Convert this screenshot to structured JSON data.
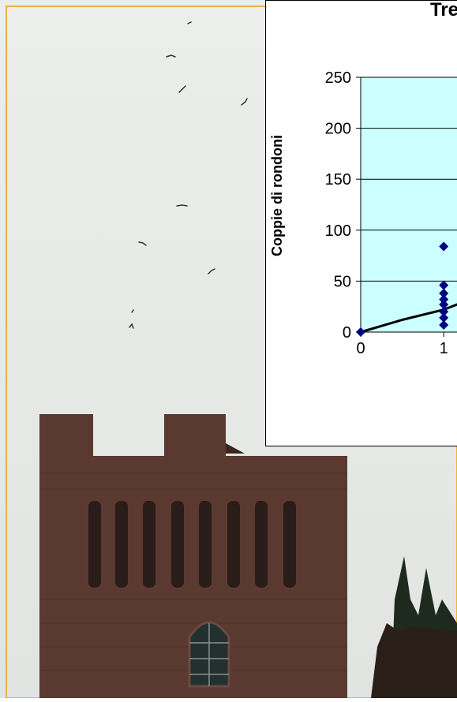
{
  "photo": {
    "description_icon": "swift-birds-over-brick-tower-photo",
    "sky_color": "#e9ece9",
    "brick_color": "#5a3a30",
    "frame_color": "#f0b040"
  },
  "chart_data": {
    "type": "scatter",
    "title": "Tre",
    "xlabel": "",
    "ylabel": "Coppie di rondoni",
    "ylim": [
      0,
      250
    ],
    "y_ticks": [
      0,
      50,
      100,
      150,
      200,
      250
    ],
    "x_ticks": [
      0,
      1
    ],
    "xlim": [
      0,
      1.35
    ],
    "grid": true,
    "plot_background": "#ccffff",
    "series": [
      {
        "type": "scatter",
        "color": "#000080",
        "points": [
          {
            "x": 0,
            "y": 0
          },
          {
            "x": 1,
            "y": 84
          },
          {
            "x": 1,
            "y": 46
          },
          {
            "x": 1,
            "y": 38
          },
          {
            "x": 1,
            "y": 32
          },
          {
            "x": 1,
            "y": 27
          },
          {
            "x": 1,
            "y": 20
          },
          {
            "x": 1,
            "y": 14
          },
          {
            "x": 1,
            "y": 7
          }
        ]
      },
      {
        "type": "line",
        "color": "#000000",
        "points": [
          {
            "x": 0,
            "y": 0
          },
          {
            "x": 0.5,
            "y": 12
          },
          {
            "x": 1,
            "y": 22
          },
          {
            "x": 1.35,
            "y": 33
          }
        ]
      }
    ]
  }
}
